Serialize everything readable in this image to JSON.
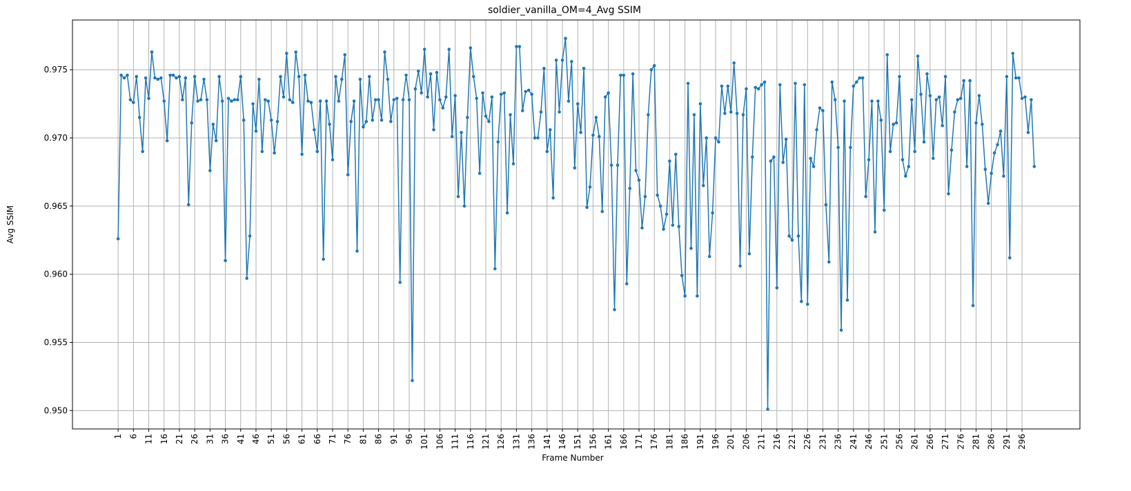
{
  "chart_data": {
    "type": "line",
    "title": "soldier_vanilla_OM=4_Avg SSIM",
    "xlabel": "Frame Number",
    "ylabel": "Avg SSIM",
    "xlim": [
      -13.9,
      314.9
    ],
    "ylim": [
      0.94865,
      0.97865
    ],
    "xticks": [
      1,
      6,
      11,
      16,
      21,
      26,
      31,
      36,
      41,
      46,
      51,
      56,
      61,
      66,
      71,
      76,
      81,
      86,
      91,
      96,
      101,
      106,
      111,
      116,
      121,
      126,
      131,
      136,
      141,
      146,
      151,
      156,
      161,
      166,
      171,
      176,
      181,
      186,
      191,
      196,
      201,
      206,
      211,
      216,
      221,
      226,
      231,
      236,
      241,
      246,
      251,
      256,
      261,
      266,
      271,
      276,
      281,
      286,
      291,
      296
    ],
    "yticks": [
      "0.950",
      "0.955",
      "0.960",
      "0.965",
      "0.970",
      "0.975"
    ],
    "grid": true,
    "series": [
      {
        "color": "#1f77b4",
        "x_start": 1,
        "values": [
          0.9626,
          0.9746,
          0.9744,
          0.9746,
          0.9728,
          0.9726,
          0.9745,
          0.9715,
          0.969,
          0.9744,
          0.9729,
          0.9763,
          0.9744,
          0.9743,
          0.9744,
          0.9727,
          0.9698,
          0.9746,
          0.9746,
          0.9744,
          0.9745,
          0.9728,
          0.9744,
          0.9651,
          0.9711,
          0.9745,
          0.9727,
          0.9728,
          0.9743,
          0.9728,
          0.9676,
          0.971,
          0.9698,
          0.9745,
          0.9727,
          0.961,
          0.9729,
          0.9727,
          0.9728,
          0.9728,
          0.9745,
          0.9713,
          0.9597,
          0.9628,
          0.9725,
          0.9705,
          0.9743,
          0.969,
          0.9728,
          0.9727,
          0.9713,
          0.9689,
          0.9712,
          0.9745,
          0.973,
          0.9762,
          0.9728,
          0.9726,
          0.9763,
          0.9745,
          0.9688,
          0.9746,
          0.9727,
          0.9726,
          0.9706,
          0.969,
          0.9727,
          0.9611,
          0.9727,
          0.971,
          0.9684,
          0.9745,
          0.9727,
          0.9743,
          0.9761,
          0.9673,
          0.9712,
          0.9727,
          0.9617,
          0.9743,
          0.9708,
          0.9712,
          0.9745,
          0.9713,
          0.9728,
          0.9728,
          0.9713,
          0.9763,
          0.9743,
          0.9712,
          0.9728,
          0.9729,
          0.9594,
          0.9728,
          0.9746,
          0.9728,
          0.9522,
          0.9736,
          0.9749,
          0.9733,
          0.9765,
          0.973,
          0.9747,
          0.9706,
          0.9748,
          0.9728,
          0.9722,
          0.973,
          0.9765,
          0.9701,
          0.9731,
          0.9657,
          0.9704,
          0.965,
          0.9715,
          0.9766,
          0.9745,
          0.9729,
          0.9674,
          0.9733,
          0.9716,
          0.9712,
          0.973,
          0.9604,
          0.9697,
          0.9732,
          0.9733,
          0.9645,
          0.9717,
          0.9681,
          0.9767,
          0.9767,
          0.972,
          0.9734,
          0.9735,
          0.9732,
          0.97,
          0.97,
          0.9719,
          0.9751,
          0.969,
          0.9706,
          0.9656,
          0.9757,
          0.9719,
          0.9757,
          0.9773,
          0.9727,
          0.9756,
          0.9678,
          0.9725,
          0.9704,
          0.9751,
          0.9649,
          0.9664,
          0.9702,
          0.9715,
          0.9701,
          0.9646,
          0.973,
          0.9733,
          0.968,
          0.9574,
          0.968,
          0.9746,
          0.9746,
          0.9593,
          0.9663,
          0.9747,
          0.9676,
          0.9669,
          0.9634,
          0.9657,
          0.9717,
          0.975,
          0.9753,
          0.9658,
          0.965,
          0.9633,
          0.9644,
          0.9683,
          0.9636,
          0.9688,
          0.9635,
          0.9599,
          0.9584,
          0.974,
          0.9619,
          0.9717,
          0.9584,
          0.9725,
          0.9665,
          0.97,
          0.9613,
          0.9645,
          0.97,
          0.9697,
          0.9738,
          0.9718,
          0.9738,
          0.9719,
          0.9755,
          0.9718,
          0.9606,
          0.9717,
          0.9736,
          0.9615,
          0.9686,
          0.9737,
          0.9736,
          0.9739,
          0.9741,
          0.9501,
          0.9683,
          0.9686,
          0.959,
          0.9739,
          0.9682,
          0.9699,
          0.9628,
          0.9625,
          0.974,
          0.9628,
          0.958,
          0.9739,
          0.9578,
          0.9685,
          0.9679,
          0.9706,
          0.9722,
          0.972,
          0.9651,
          0.9609,
          0.9741,
          0.9728,
          0.9693,
          0.9559,
          0.9727,
          0.9581,
          0.9693,
          0.9738,
          0.9741,
          0.9744,
          0.9744,
          0.9657,
          0.9684,
          0.9727,
          0.9631,
          0.9727,
          0.9713,
          0.9647,
          0.9761,
          0.969,
          0.971,
          0.9711,
          0.9745,
          0.9684,
          0.9672,
          0.9679,
          0.9728,
          0.969,
          0.976,
          0.9732,
          0.9697,
          0.9747,
          0.9731,
          0.9685,
          0.9728,
          0.973,
          0.9709,
          0.9745,
          0.9659,
          0.9691,
          0.9719,
          0.9728,
          0.9729,
          0.9742,
          0.9679,
          0.9742,
          0.9577,
          0.9711,
          0.9731,
          0.971,
          0.9677,
          0.9652,
          0.9674,
          0.9689,
          0.9695,
          0.9705,
          0.9672,
          0.9745,
          0.9612,
          0.9762,
          0.9744,
          0.9744,
          0.9729,
          0.973,
          0.9704,
          0.9728,
          0.9679
        ]
      }
    ]
  }
}
